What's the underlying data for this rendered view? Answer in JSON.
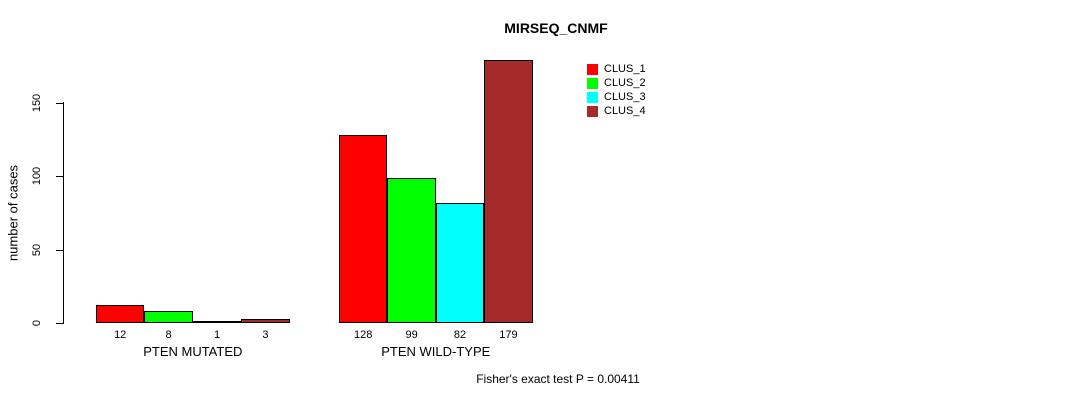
{
  "title": "MIRSEQ_CNMF",
  "y_axis": {
    "label": "number of cases",
    "ticks": [
      0,
      50,
      100,
      150
    ]
  },
  "footer": "Fisher's exact test P = 0.00411",
  "chart_data": {
    "type": "bar",
    "categories": [
      "PTEN MUTATED",
      "PTEN WILD-TYPE"
    ],
    "series": [
      {
        "name": "CLUS_1",
        "color": "#FF0000",
        "values": [
          12,
          128
        ]
      },
      {
        "name": "CLUS_2",
        "color": "#00FF00",
        "values": [
          8,
          99
        ]
      },
      {
        "name": "CLUS_3",
        "color": "#00FFFF",
        "values": [
          1,
          82
        ]
      },
      {
        "name": "CLUS_4",
        "color": "#A52A2A",
        "values": [
          3,
          179
        ]
      }
    ],
    "bar_value_labels": [
      [
        "12",
        "8",
        "1",
        "3"
      ],
      [
        "128",
        "99",
        "82",
        "179"
      ]
    ],
    "ylabel": "number of cases",
    "yticks": [
      0,
      50,
      100,
      150
    ],
    "ylim": [
      0,
      183
    ],
    "grid": false,
    "legend_position": "top-right-of-plot",
    "annotation": "Fisher's exact test P = 0.00411"
  }
}
